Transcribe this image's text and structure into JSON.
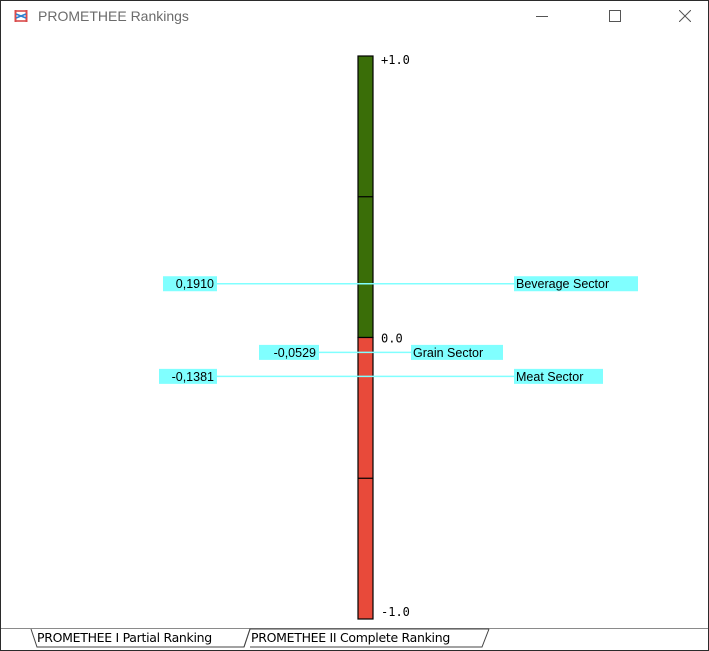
{
  "window": {
    "title": "PROMETHEE Rankings",
    "accent_icon_colors": [
      "#d94a4a",
      "#2f7fd0"
    ]
  },
  "chart_data": {
    "type": "ranking-scale",
    "scale_labels": {
      "top": "+1.0",
      "zero": "0.0",
      "bottom": "-1.0"
    },
    "range": [
      -1.0,
      1.0
    ],
    "colors": {
      "positive": "#3a6e08",
      "negative": "#e84a3a",
      "marker": "#80ffff"
    },
    "items": [
      {
        "name": "Beverage Sector",
        "value": 0.191,
        "value_label": "0,1910"
      },
      {
        "name": "Grain Sector",
        "value": -0.0529,
        "value_label": "-0,0529"
      },
      {
        "name": "Meat Sector",
        "value": -0.1381,
        "value_label": "-0,1381"
      }
    ]
  },
  "tabs": [
    {
      "label": "PROMETHEE I Partial Ranking",
      "active": false
    },
    {
      "label": "PROMETHEE II Complete Ranking",
      "active": true
    }
  ]
}
